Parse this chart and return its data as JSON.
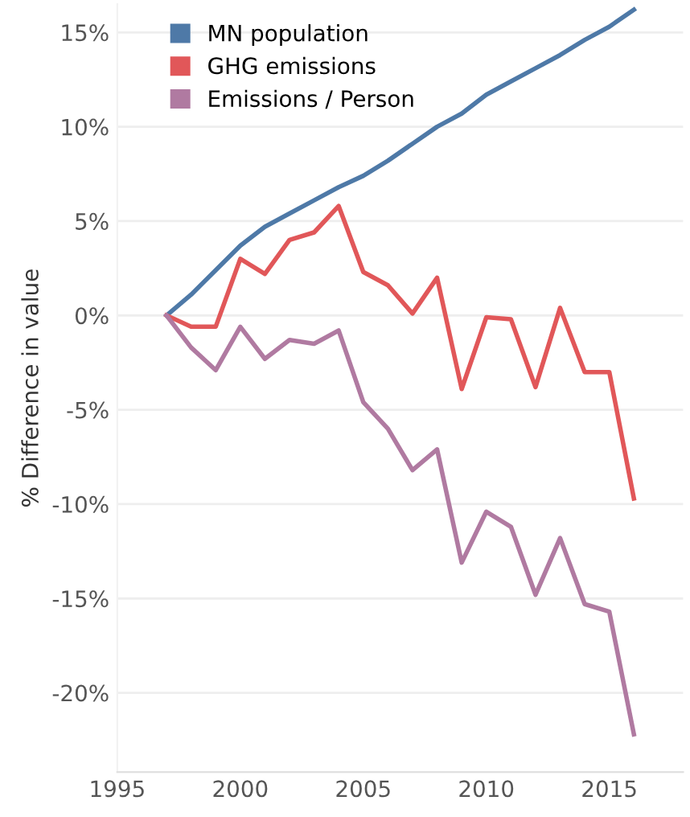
{
  "chart_data": {
    "type": "line",
    "ylabel": "% Difference in value",
    "x": [
      1997,
      1998,
      1999,
      2000,
      2001,
      2002,
      2003,
      2004,
      2005,
      2006,
      2007,
      2008,
      2009,
      2010,
      2011,
      2012,
      2013,
      2014,
      2015,
      2016
    ],
    "series": [
      {
        "name": "MN population",
        "color": "#4e79a7",
        "values": [
          0,
          1.1,
          2.4,
          3.7,
          4.7,
          5.4,
          6.1,
          6.8,
          7.4,
          8.2,
          9.1,
          10.0,
          10.7,
          11.7,
          12.4,
          13.1,
          13.8,
          14.6,
          15.3,
          16.2
        ]
      },
      {
        "name": "GHG emissions",
        "color": "#e15759",
        "values": [
          0,
          -0.6,
          -0.6,
          3.0,
          2.2,
          4.0,
          4.4,
          5.8,
          2.3,
          1.6,
          0.1,
          2.0,
          -3.9,
          -0.1,
          -0.2,
          -3.8,
          0.4,
          -3.0,
          -3.0,
          -9.7
        ]
      },
      {
        "name": "Emissions / Person",
        "color": "#b07aa1",
        "values": [
          0,
          -1.7,
          -2.9,
          -0.6,
          -2.3,
          -1.3,
          -1.5,
          -0.8,
          -4.6,
          -6.0,
          -8.2,
          -7.1,
          -13.1,
          -10.4,
          -11.2,
          -14.8,
          -11.8,
          -15.3,
          -15.7,
          -22.2
        ]
      }
    ],
    "xlim": [
      1995,
      2018
    ],
    "xticks": [
      1995,
      2000,
      2005,
      2010,
      2015
    ],
    "ylim": [
      -24.2,
      16.5
    ],
    "yticks": [
      {
        "value": -20,
        "label": "-20%"
      },
      {
        "value": -15,
        "label": "-15%"
      },
      {
        "value": -10,
        "label": "-10%"
      },
      {
        "value": -5,
        "label": "-5%"
      },
      {
        "value": 0,
        "label": "0%"
      },
      {
        "value": 5,
        "label": "5%"
      },
      {
        "value": 10,
        "label": "10%"
      },
      {
        "value": 15,
        "label": "15%"
      }
    ],
    "grid": "y",
    "legend": "top left",
    "marker": "none",
    "line_style": "solid"
  }
}
